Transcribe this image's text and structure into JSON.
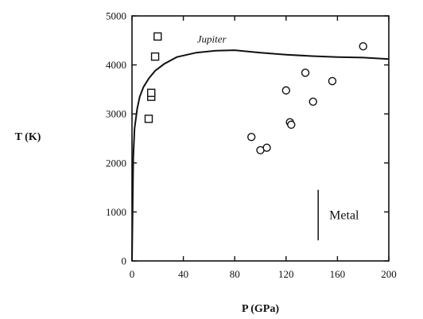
{
  "chart_data": {
    "type": "scatter",
    "xlabel": "P (GPa)",
    "ylabel": "T (K)",
    "xlim": [
      0,
      200
    ],
    "ylim": [
      0,
      5000
    ],
    "xticks": [
      0,
      40,
      80,
      120,
      160,
      200
    ],
    "yticks": [
      0,
      1000,
      2000,
      3000,
      4000,
      5000
    ],
    "grid": false,
    "series": [
      {
        "marker": "square",
        "points": [
          {
            "x": 13,
            "y": 2900
          },
          {
            "x": 15,
            "y": 3350
          },
          {
            "x": 15,
            "y": 3430
          },
          {
            "x": 18,
            "y": 4170
          },
          {
            "x": 20,
            "y": 4580
          }
        ]
      },
      {
        "marker": "circle",
        "points": [
          {
            "x": 93,
            "y": 2530
          },
          {
            "x": 100,
            "y": 2260
          },
          {
            "x": 105,
            "y": 2310
          },
          {
            "x": 120,
            "y": 3480
          },
          {
            "x": 123,
            "y": 2830
          },
          {
            "x": 124,
            "y": 2780
          },
          {
            "x": 135,
            "y": 3840
          },
          {
            "x": 141,
            "y": 3250
          },
          {
            "x": 156,
            "y": 3670
          },
          {
            "x": 180,
            "y": 4380
          }
        ]
      },
      {
        "name": "Jupiter",
        "marker": "line",
        "points": [
          {
            "x": 0,
            "y": 0
          },
          {
            "x": 1,
            "y": 2100
          },
          {
            "x": 2,
            "y": 2700
          },
          {
            "x": 4,
            "y": 3100
          },
          {
            "x": 6,
            "y": 3350
          },
          {
            "x": 9,
            "y": 3550
          },
          {
            "x": 13,
            "y": 3720
          },
          {
            "x": 18,
            "y": 3880
          },
          {
            "x": 25,
            "y": 4020
          },
          {
            "x": 35,
            "y": 4160
          },
          {
            "x": 50,
            "y": 4250
          },
          {
            "x": 65,
            "y": 4290
          },
          {
            "x": 80,
            "y": 4300
          },
          {
            "x": 100,
            "y": 4250
          },
          {
            "x": 120,
            "y": 4210
          },
          {
            "x": 140,
            "y": 4180
          },
          {
            "x": 160,
            "y": 4160
          },
          {
            "x": 180,
            "y": 4150
          },
          {
            "x": 200,
            "y": 4120
          }
        ]
      }
    ],
    "annotations": [
      {
        "text": "Metal",
        "marker": "vertical-bar",
        "x": 145,
        "y_range": [
          420,
          1450
        ]
      }
    ]
  }
}
